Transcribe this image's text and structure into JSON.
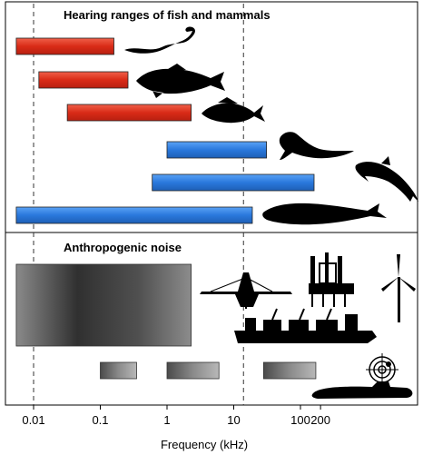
{
  "chart_data": [
    {
      "type": "range-bar",
      "title": "Hearing ranges of fish and mammals",
      "x_scale": "log",
      "xlim": [
        0.004,
        500
      ],
      "bars": [
        {
          "group": "fish",
          "icon": "eel-icon",
          "color": "#e0341f",
          "x_min": 0.0055,
          "x_max": 0.16
        },
        {
          "group": "fish",
          "icon": "cod-icon",
          "color": "#e0341f",
          "x_min": 0.012,
          "x_max": 0.26
        },
        {
          "group": "fish",
          "icon": "small-fish-icon",
          "color": "#e0341f",
          "x_min": 0.032,
          "x_max": 2.3
        },
        {
          "group": "mammal",
          "icon": "seal-icon",
          "color": "#2f7de0",
          "x_min": 1.0,
          "x_max": 31
        },
        {
          "group": "mammal",
          "icon": "dolphin-icon",
          "color": "#2f7de0",
          "x_min": 0.6,
          "x_max": 160
        },
        {
          "group": "mammal",
          "icon": "whale-icon",
          "color": "#2f7de0",
          "x_min": 0.0055,
          "x_max": 19
        }
      ]
    },
    {
      "type": "range-bar",
      "title": "Anthropogenic noise",
      "x_scale": "log",
      "xlim": [
        0.004,
        500
      ],
      "bars": [
        {
          "source": "pile-driving",
          "icons": [
            "pile-driving-rig-icon",
            "drilling-platform-icon",
            "wind-turbine-icon"
          ],
          "x_min": 0.0055,
          "x_max": 2.3
        },
        {
          "source": "shipping",
          "icon": "cargo-ship-icon",
          "x_min": 0.1,
          "x_max": 0.35
        },
        {
          "source": "shipping-mid",
          "x_min": 1.0,
          "x_max": 6
        },
        {
          "source": "sonar",
          "icons": [
            "sonar-target-icon",
            "submarine-icon"
          ],
          "x_min": 28,
          "x_max": 170
        }
      ]
    }
  ],
  "x_axis": {
    "label": "Frequency (kHz)",
    "ticks": [
      {
        "value": 0.01,
        "label": "0.01"
      },
      {
        "value": 0.1,
        "label": "0.1"
      },
      {
        "value": 1,
        "label": "1"
      },
      {
        "value": 10,
        "label": "10"
      },
      {
        "value": 100,
        "label": "100"
      },
      {
        "value": 200,
        "label": "200"
      }
    ]
  },
  "reference_lines": [
    0.01,
    14
  ]
}
